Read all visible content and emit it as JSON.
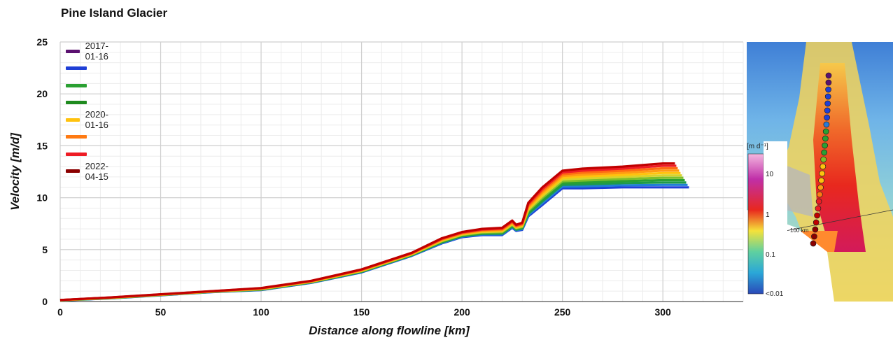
{
  "title": "Pine Island Glacier",
  "chart_data": {
    "type": "line",
    "title": "Pine Island Glacier",
    "xlabel": "Distance along flowline [km]",
    "ylabel": "Velocity [m/d]",
    "xlim": [
      0,
      340
    ],
    "ylim": [
      0,
      25
    ],
    "xticks": [
      0,
      50,
      100,
      150,
      200,
      250,
      300
    ],
    "yticks": [
      0,
      5,
      10,
      15,
      20,
      25
    ],
    "grid": true,
    "legend_position": "top-left",
    "legend": [
      {
        "label": "2017-01-16",
        "color": "#5b1170"
      },
      {
        "label": "",
        "color": "#1f3fd6"
      },
      {
        "label": "",
        "color": "#2aa032"
      },
      {
        "label": "",
        "color": "#1e8a1e"
      },
      {
        "label": "2020-01-16",
        "color": "#ffc20e"
      },
      {
        "label": "",
        "color": "#ff7a12"
      },
      {
        "label": "",
        "color": "#ee1c24"
      },
      {
        "label": "2022-04-15",
        "color": "#8b0000"
      }
    ],
    "x": [
      0,
      25,
      50,
      75,
      100,
      125,
      150,
      175,
      190,
      200,
      210,
      220,
      225,
      227,
      230,
      233,
      240,
      250,
      260,
      280,
      300
    ],
    "series_profiles": {
      "earliest_color": "#1f3fd6",
      "latest_color": "#c00000",
      "earliest_end_km": 313,
      "latest_end_km": 306,
      "earliest_values": [
        0.1,
        0.3,
        0.6,
        0.9,
        1.1,
        1.8,
        2.8,
        4.4,
        5.6,
        6.2,
        6.4,
        6.4,
        7.1,
        6.8,
        6.9,
        8.2,
        9.3,
        10.9,
        10.9,
        11.0,
        11.0
      ],
      "latest_values": [
        0.15,
        0.4,
        0.7,
        1.0,
        1.3,
        2.0,
        3.1,
        4.7,
        6.1,
        6.7,
        7.0,
        7.1,
        7.8,
        7.4,
        7.6,
        9.5,
        11.0,
        12.6,
        12.8,
        13.0,
        13.3
      ]
    }
  },
  "map_colorbar": {
    "unit": "[m d⁻¹]",
    "ticks": [
      "10",
      "1",
      "0.1",
      "<0.01"
    ],
    "flowline_label": "100 km"
  }
}
